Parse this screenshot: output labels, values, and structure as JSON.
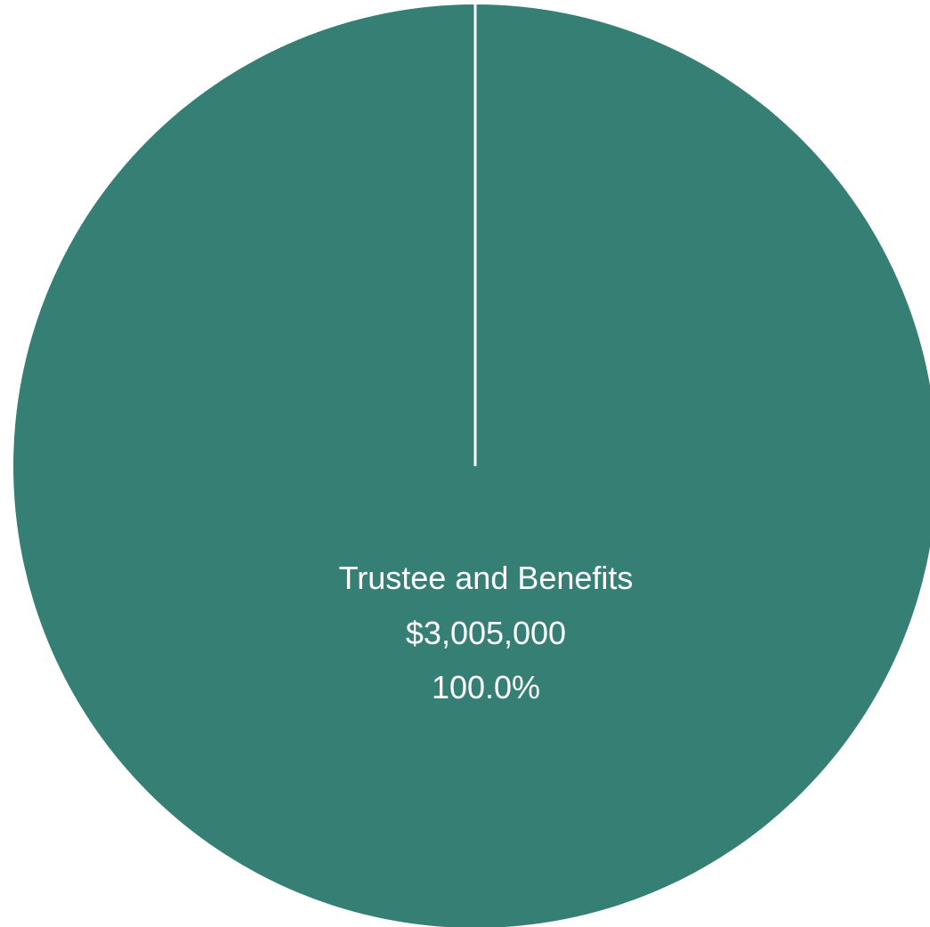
{
  "chart_data": {
    "type": "pie",
    "slices": [
      {
        "label": "Trustee and Benefits",
        "value": 3005000,
        "value_label": "$3,005,000",
        "percent_label": "100.0%",
        "color": "#367f74"
      }
    ],
    "slice_border_color": "#ffffff"
  }
}
